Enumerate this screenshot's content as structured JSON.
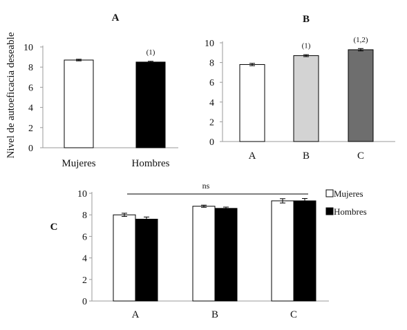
{
  "ylabel": "Nivel de autoeficacia deseable",
  "chart_data": [
    {
      "panel": "A",
      "type": "bar",
      "categories": [
        "Mujeres",
        "Hombres"
      ],
      "values": [
        8.7,
        8.5
      ],
      "errors": [
        0.08,
        0.08
      ],
      "colors": [
        "#ffffff",
        "#000000"
      ],
      "annotations": [
        "",
        "(1)"
      ],
      "ylim": [
        0,
        10
      ],
      "yticks": [
        0,
        2,
        4,
        6,
        8,
        10
      ],
      "ylabel": "Nivel de autoeficacia deseable"
    },
    {
      "panel": "B",
      "type": "bar",
      "categories": [
        "A",
        "B",
        "C"
      ],
      "values": [
        7.8,
        8.7,
        9.3
      ],
      "errors": [
        0.12,
        0.1,
        0.12
      ],
      "colors": [
        "#ffffff",
        "#d3d3d3",
        "#6e6e6e"
      ],
      "annotations": [
        "",
        "(1)",
        "(1,2)"
      ],
      "ylim": [
        0,
        10
      ],
      "yticks": [
        0,
        2,
        4,
        6,
        8,
        10
      ]
    },
    {
      "panel": "C",
      "type": "bar",
      "categories": [
        "A",
        "B",
        "C"
      ],
      "series": [
        {
          "name": "Mujeres",
          "values": [
            8.0,
            8.8,
            9.3
          ],
          "errors": [
            0.15,
            0.1,
            0.2
          ],
          "color": "#ffffff"
        },
        {
          "name": "Hombres",
          "values": [
            7.6,
            8.6,
            9.3
          ],
          "errors": [
            0.2,
            0.12,
            0.22
          ],
          "color": "#000000"
        }
      ],
      "annotation": "ns",
      "legend": "top-right",
      "ylim": [
        0,
        10
      ],
      "yticks": [
        0,
        2,
        4,
        6,
        8,
        10
      ]
    }
  ]
}
